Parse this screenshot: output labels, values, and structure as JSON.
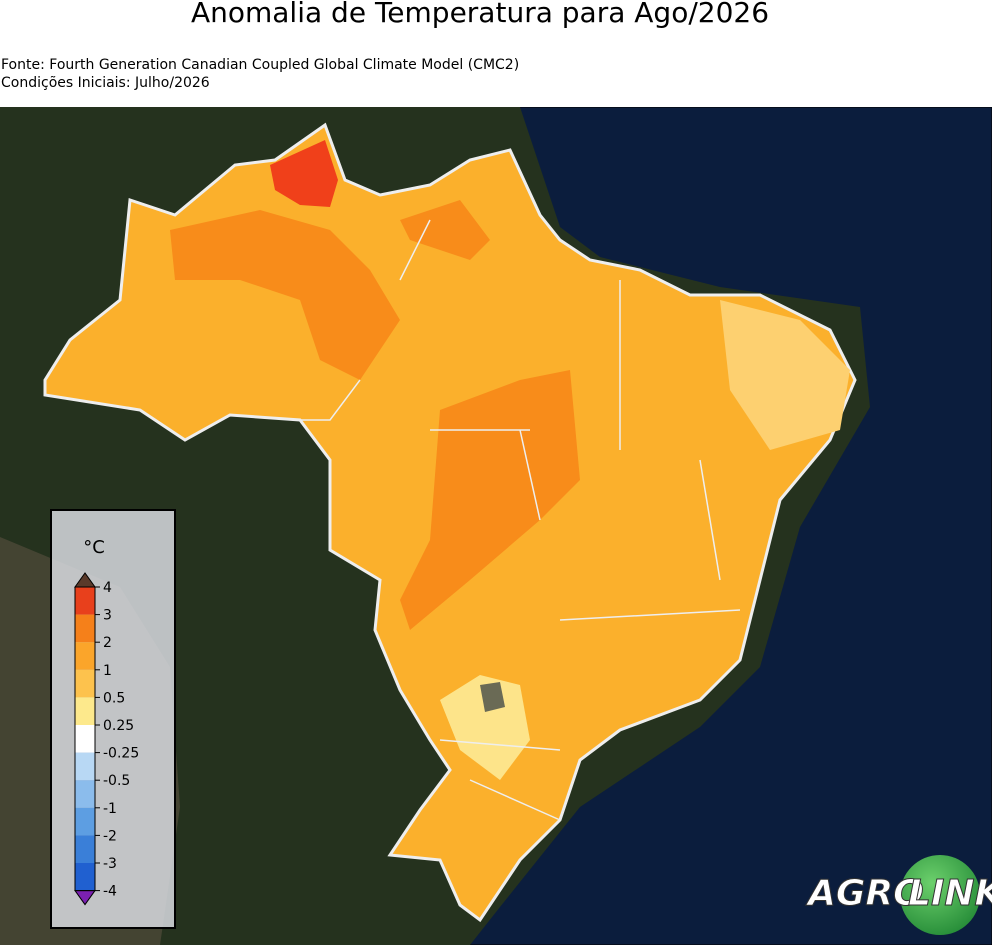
{
  "header": {
    "title": "Anomalia de Temperatura para Ago/2026",
    "source": "Fonte: Fourth Generation Canadian Coupled Global Climate Model (CMC2)",
    "initial_conditions": "Condições Iniciais: Julho/2026"
  },
  "legend": {
    "unit": "°C",
    "ticks": [
      "4",
      "3",
      "2",
      "1",
      "0.5",
      "0.25",
      "-0.25",
      "-0.5",
      "-1",
      "-2",
      "-3",
      "-4"
    ]
  },
  "logo": {
    "left": "AGRO",
    "right": "LINK"
  }
}
